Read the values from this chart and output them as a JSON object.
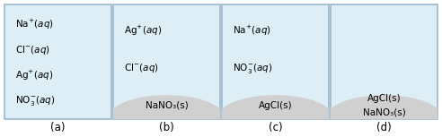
{
  "panels": [
    {
      "label": "(a)",
      "box_color": "#ddeef6",
      "border_color": "#9ab8cc",
      "has_sediment": false,
      "sediment_color": "#d0d0d0",
      "lines_aq": [
        {
          "sym": "Na",
          "charge": "+",
          "sub": ""
        },
        {
          "sym": "Cl",
          "charge": "−",
          "sub": ""
        },
        {
          "sym": "Ag",
          "charge": "+",
          "sub": ""
        },
        {
          "sym": "NO",
          "charge": "−",
          "sub": "3"
        }
      ],
      "lines_solid": []
    },
    {
      "label": "(b)",
      "box_color": "#ddeef6",
      "border_color": "#9ab8cc",
      "has_sediment": true,
      "sediment_color": "#d0d0d0",
      "lines_aq": [
        {
          "sym": "Ag",
          "charge": "+",
          "sub": ""
        },
        {
          "sym": "Cl",
          "charge": "−",
          "sub": ""
        }
      ],
      "lines_solid": [
        "NaNO₃(s)"
      ]
    },
    {
      "label": "(c)",
      "box_color": "#ddeef6",
      "border_color": "#9ab8cc",
      "has_sediment": true,
      "sediment_color": "#d0d0d0",
      "lines_aq": [
        {
          "sym": "Na",
          "charge": "+",
          "sub": ""
        },
        {
          "sym": "NO",
          "charge": "−",
          "sub": "3"
        }
      ],
      "lines_solid": [
        "AgCl(s)"
      ]
    },
    {
      "label": "(d)",
      "box_color": "#ddeef6",
      "border_color": "#9ab8cc",
      "has_sediment": true,
      "sediment_color": "#d0d0d0",
      "lines_aq": [],
      "lines_solid": [
        "AgCl(s)",
        "NaNO₃(s)"
      ]
    }
  ],
  "fig_bg": "#ffffff",
  "label_fontsize": 8.5,
  "text_fontsize": 7.5
}
